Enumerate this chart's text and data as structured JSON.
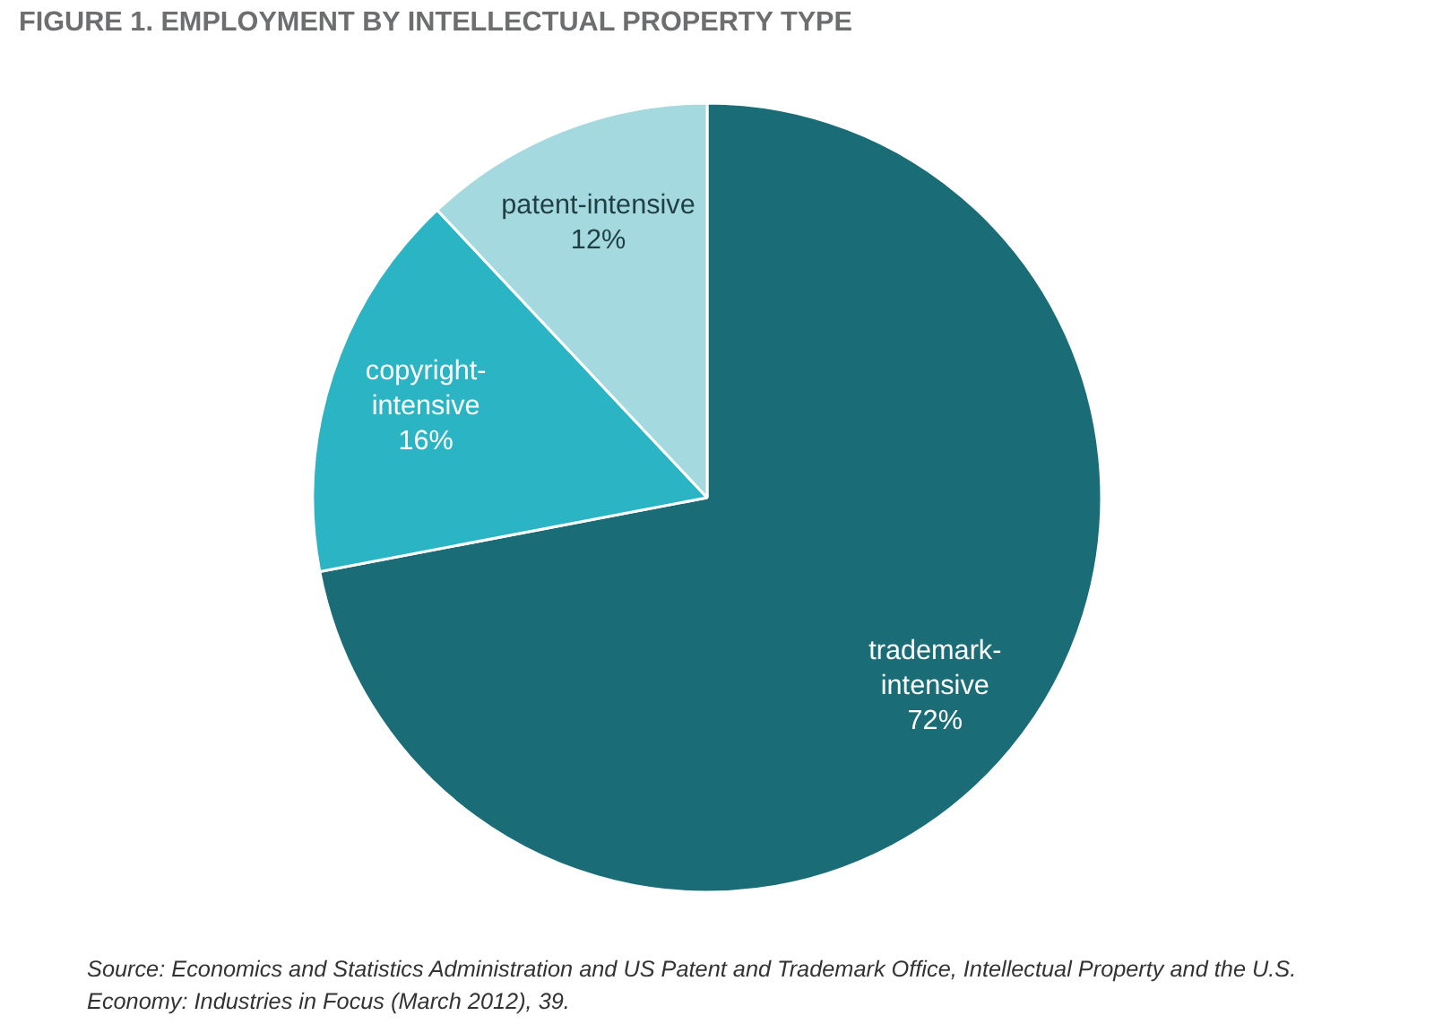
{
  "chart_data": {
    "type": "pie",
    "title": "FIGURE 1. EMPLOYMENT BY INTELLECTUAL PROPERTY TYPE",
    "categories": [
      "trademark-intensive",
      "copyright-intensive",
      "patent-intensive"
    ],
    "values": [
      72,
      16,
      12
    ],
    "colors": [
      "#1a6d77",
      "#2ab4c4",
      "#a4d9df"
    ],
    "value_labels": [
      "72%",
      "16%",
      "12%"
    ],
    "legend": false,
    "annotations": [
      "Source: Economics and Statistics Administration and US Patent and Trademark Office, Intellectual Property and the U.S. Economy: Industries in Focus (March 2012), 39."
    ]
  }
}
